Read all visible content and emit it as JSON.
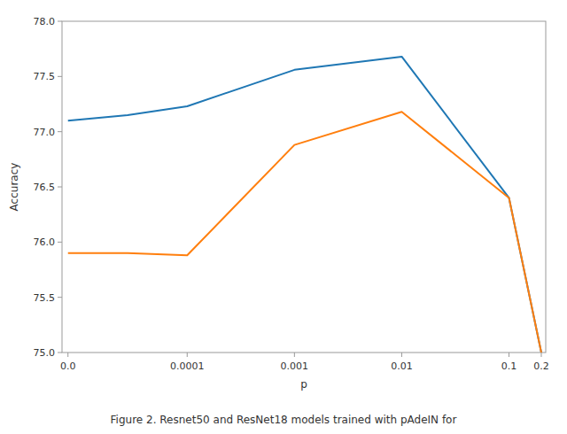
{
  "chart_data": {
    "type": "line",
    "xlabel": "p",
    "ylabel": "Accuracy",
    "caption": "Figure 2. Resnet50 and ResNet18 models trained with pAdeIN for",
    "x": [
      0.0,
      5e-05,
      0.0001,
      0.001,
      0.01,
      0.1,
      0.2
    ],
    "series": [
      {
        "color": "#1f77b4",
        "values": [
          77.1,
          77.15,
          77.23,
          77.56,
          77.68,
          76.4,
          75.0
        ]
      },
      {
        "color": "#ff7f0e",
        "values": [
          75.9,
          75.9,
          75.88,
          76.88,
          77.18,
          76.4,
          75.0
        ]
      }
    ],
    "log": "x",
    "linthresh": 0.0001,
    "xlim": [
      -5e-06,
      0.22
    ],
    "xticks": [
      {
        "value": 0.0,
        "label": "0.0"
      },
      0.0001,
      0.001,
      0.01,
      0.1,
      0.2
    ],
    "ylim": [
      75.0,
      78.0
    ],
    "yticks": [
      {
        "value": 75.0,
        "label": "75.0"
      },
      75.5,
      {
        "value": 76.0,
        "label": "76.0"
      },
      76.5,
      {
        "value": 77.0,
        "label": "77.0"
      },
      77.5,
      {
        "value": 78.0,
        "label": "78.0"
      }
    ],
    "grid": false
  }
}
